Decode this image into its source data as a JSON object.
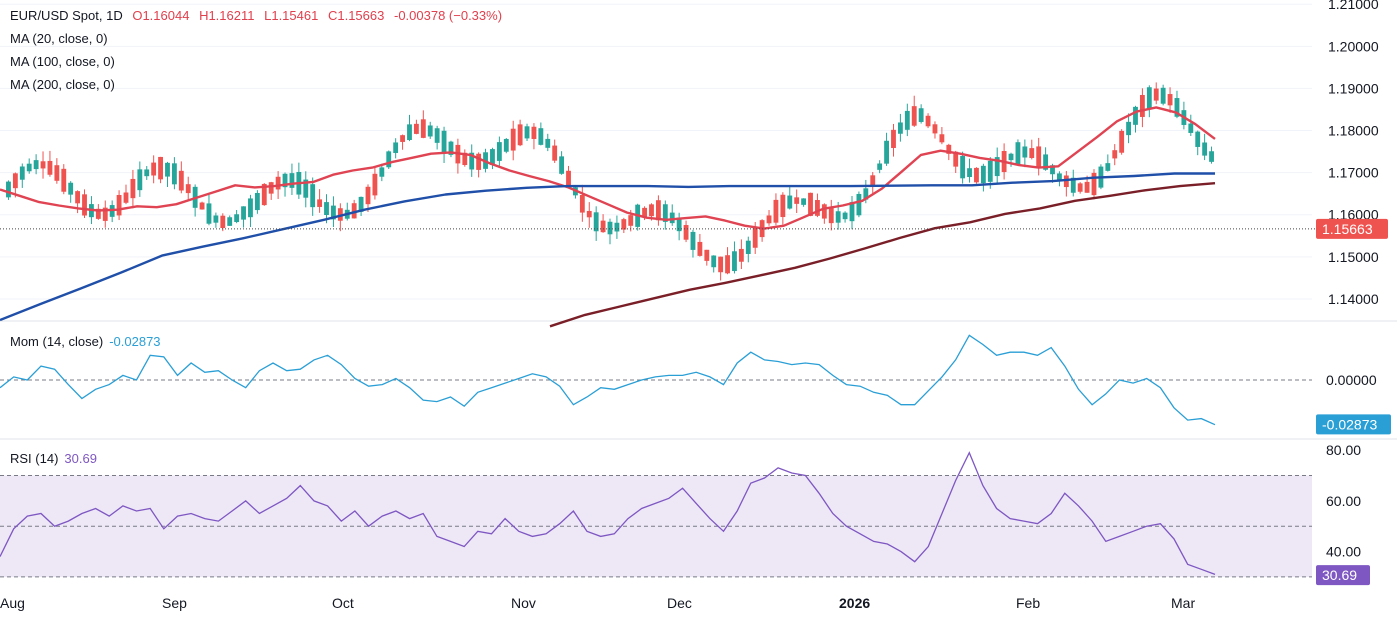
{
  "header": {
    "symbol": "EUR/USD Spot, 1D",
    "open": "O1.16044",
    "high": "H1.16211",
    "low": "L1.15461",
    "close": "C1.15663",
    "change": "-0.00378 (−0.33%)",
    "ma20": "MA (20, close, 0)",
    "ma100": "MA (100, close, 0)",
    "ma200": "MA (200, close, 0)"
  },
  "momentum": {
    "label": "Mom (14, close)",
    "value": "-0.02873",
    "badge": "-0.02873"
  },
  "rsi": {
    "label": "RSI (14)",
    "value": "30.69",
    "badge": "30.69"
  },
  "price_badge": "1.15663",
  "colors": {
    "up": "#26a69a",
    "down": "#ef5350",
    "ma20": "#e04352",
    "ma100": "#1f4fa8",
    "ma200": "#7a1f27",
    "momentum": "#2a9fd6",
    "rsi": "#7e57c2",
    "rsi_band": "#ede7f6"
  },
  "chart_data": [
    {
      "type": "candlestick",
      "title": "EUR/USD Spot, 1D",
      "x_ticks": [
        "Aug",
        "Sep",
        "Oct",
        "Nov",
        "Dec",
        "2026",
        "Feb",
        "Mar"
      ],
      "y_ticks": [
        "1.14000",
        "1.15000",
        "1.16000",
        "1.17000",
        "1.18000",
        "1.19000",
        "1.20000",
        "1.21000"
      ],
      "ylim": [
        1.135,
        1.211
      ],
      "last": 1.15663,
      "series": [
        {
          "name": "MA (20, close, 0)",
          "values": [
            1.166,
            1.1645,
            1.163,
            1.1622,
            1.1615,
            1.161,
            1.1612,
            1.162,
            1.1618,
            1.1625,
            1.164,
            1.1655,
            1.167,
            1.1665,
            1.1668,
            1.1674,
            1.1678,
            1.1695,
            1.1705,
            1.1712,
            1.1725,
            1.1735,
            1.1745,
            1.1748,
            1.1742,
            1.1722,
            1.1705,
            1.1692,
            1.168,
            1.1665,
            1.1645,
            1.1625,
            1.1605,
            1.1593,
            1.1588,
            1.1592,
            1.1596,
            1.1586,
            1.1574,
            1.1567,
            1.1574,
            1.1594,
            1.1614,
            1.1622,
            1.1633,
            1.1662,
            1.1702,
            1.1742,
            1.1752,
            1.1745,
            1.1735,
            1.1728,
            1.1718,
            1.1712,
            1.1715,
            1.175,
            1.1785,
            1.1822,
            1.1845,
            1.1855,
            1.1843,
            1.1815,
            1.178
          ]
        },
        {
          "name": "MA (100, close, 0)",
          "values": [
            1.135,
            1.1388,
            1.1425,
            1.1463,
            1.1503,
            1.1524,
            1.1544,
            1.1566,
            1.1588,
            1.1612,
            1.1632,
            1.1648,
            1.1657,
            1.1664,
            1.1668,
            1.1668,
            1.1668,
            1.1666,
            1.1668,
            1.1668,
            1.1668,
            1.1668,
            1.1669,
            1.167,
            1.167,
            1.1676,
            1.168,
            1.1688,
            1.1692,
            1.1698,
            1.1698
          ]
        },
        {
          "name": "MA (200, close, 0)",
          "values": [
            1.1335,
            1.1362,
            1.1382,
            1.1402,
            1.1422,
            1.1438,
            1.1456,
            1.1474,
            1.1496,
            1.152,
            1.1545,
            1.1568,
            1.1582,
            1.1602,
            1.1615,
            1.1633,
            1.1645,
            1.1658,
            1.1668,
            1.1675
          ]
        }
      ]
    },
    {
      "type": "line",
      "name": "Mom (14, close)",
      "y_ticks": [
        "0.00000"
      ],
      "ylim": [
        -0.035,
        0.035
      ],
      "last": -0.02873,
      "values": [
        -0.005,
        0.002,
        0.0,
        0.009,
        0.007,
        -0.003,
        -0.012,
        -0.006,
        -0.003,
        0.003,
        0.0,
        0.016,
        0.015,
        0.003,
        0.011,
        0.005,
        0.006,
        0.0,
        -0.005,
        0.006,
        0.011,
        0.006,
        0.007,
        0.013,
        0.016,
        0.01,
        0.001,
        -0.004,
        -0.003,
        0.001,
        -0.005,
        -0.013,
        -0.014,
        -0.011,
        -0.017,
        -0.008,
        -0.005,
        -0.002,
        0.001,
        0.004,
        0.002,
        -0.004,
        -0.016,
        -0.011,
        -0.005,
        -0.006,
        -0.003,
        0.0,
        0.002,
        0.003,
        0.003,
        0.005,
        0.002,
        -0.003,
        0.011,
        0.018,
        0.013,
        0.012,
        0.01,
        0.011,
        0.01,
        0.003,
        -0.003,
        -0.004,
        -0.008,
        -0.01,
        -0.016,
        -0.016,
        -0.007,
        0.002,
        0.013,
        0.029,
        0.023,
        0.016,
        0.018,
        0.018,
        0.016,
        0.021,
        0.009,
        -0.006,
        -0.016,
        -0.009,
        0.0,
        -0.002,
        0.001,
        -0.005,
        -0.018,
        -0.026,
        -0.025,
        -0.029
      ]
    },
    {
      "type": "line",
      "name": "RSI (14)",
      "y_ticks": [
        "40.00",
        "60.00",
        "80.00"
      ],
      "ylim": [
        28,
        84
      ],
      "bands": [
        30,
        50,
        70
      ],
      "last": 30.69,
      "values": [
        38,
        49,
        54,
        55,
        50,
        52,
        55,
        57,
        54,
        58,
        56,
        57,
        49,
        54,
        55,
        53,
        52,
        56,
        60,
        55,
        58,
        61,
        66,
        60,
        58,
        52,
        56,
        50,
        54,
        56,
        53,
        55,
        46,
        44,
        42,
        48,
        47,
        53,
        48,
        46,
        47,
        51,
        56,
        48,
        46,
        47,
        53,
        57,
        59,
        61,
        65,
        59,
        53,
        48,
        56,
        67,
        69,
        73,
        71,
        70,
        63,
        55,
        50,
        47,
        44,
        43,
        40,
        36,
        42,
        55,
        68,
        79,
        66,
        57,
        53,
        52,
        51,
        55,
        63,
        58,
        52,
        44,
        46,
        48,
        50,
        51,
        45,
        35,
        33,
        31
      ]
    }
  ]
}
